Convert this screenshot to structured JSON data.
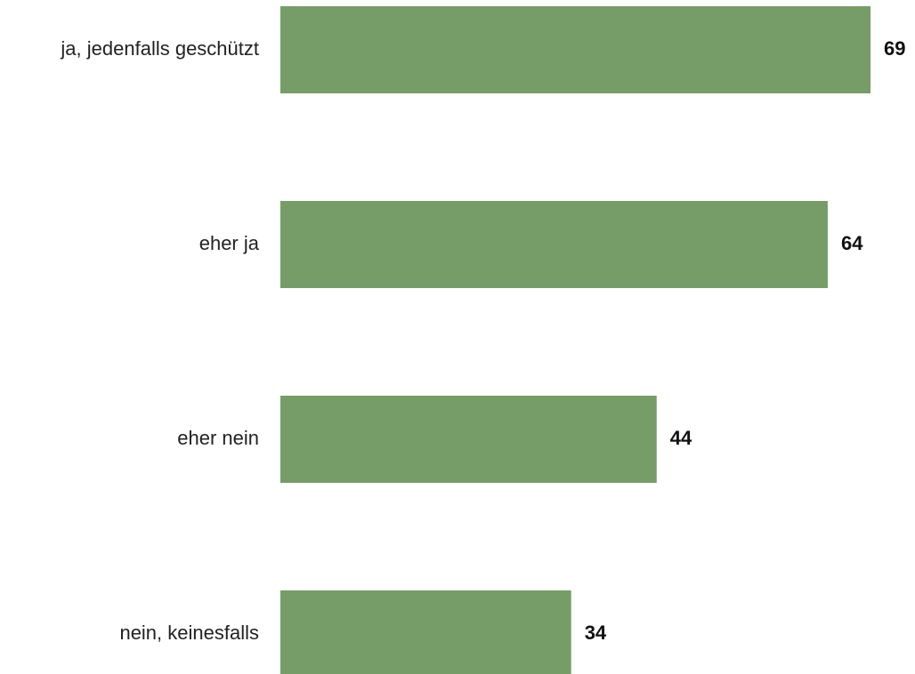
{
  "chart_data": {
    "type": "bar",
    "orientation": "horizontal",
    "categories": [
      "ja, jedenfalls geschützt",
      "eher ja",
      "eher nein",
      "nein, keinesfalls"
    ],
    "values": [
      69,
      64,
      44,
      34
    ],
    "title": "",
    "xlabel": "",
    "ylabel": "",
    "grid": false,
    "legend": "none",
    "bar_color": "#769d67",
    "value_labels": [
      "69",
      "64",
      "44",
      "34"
    ]
  }
}
